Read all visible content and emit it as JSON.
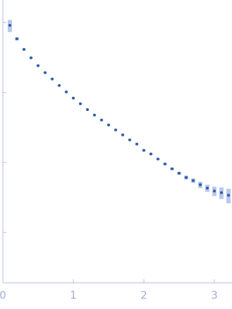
{
  "chart_data": {
    "type": "scatter",
    "x": [
      0.1,
      0.2,
      0.3,
      0.4,
      0.5,
      0.6,
      0.7,
      0.8,
      0.9,
      1.0,
      1.1,
      1.2,
      1.3,
      1.4,
      1.5,
      1.6,
      1.7,
      1.8,
      1.9,
      2.0,
      2.1,
      2.2,
      2.3,
      2.4,
      2.5,
      2.6,
      2.7,
      2.8,
      2.9,
      3.0,
      3.1,
      3.2
    ],
    "values": [
      0.91,
      0.586,
      0.413,
      0.313,
      0.242,
      0.192,
      0.156,
      0.126,
      0.102,
      0.083,
      0.069,
      0.057,
      0.0475,
      0.0404,
      0.0343,
      0.0292,
      0.0248,
      0.021,
      0.0183,
      0.0149,
      0.0132,
      0.0112,
      0.0095,
      0.0081,
      0.007,
      0.0061,
      0.0055,
      0.0048,
      0.0043,
      0.0039,
      0.0037,
      0.0034
    ],
    "errors": [
      0.18,
      0.03,
      0.008,
      0.005,
      0.003,
      0.002,
      0.0015,
      0.001,
      0.0008,
      0.0006,
      0.0005,
      0.0004,
      0.0003,
      0.0003,
      0.0002,
      0.0002,
      0.0002,
      0.0002,
      0.0002,
      0.0002,
      0.0002,
      0.0002,
      0.0003,
      0.0003,
      0.0003,
      0.0004,
      0.0004,
      0.0005,
      0.0005,
      0.0006,
      0.0007,
      0.0008
    ],
    "color": "#2f5daa",
    "error_color": "#b9c9ea",
    "xlim": [
      0,
      3.25
    ],
    "xticks": [
      0,
      1,
      2,
      3
    ],
    "ylim": [
      0.00019,
      2.1
    ],
    "yticks": [
      0.001,
      0.01,
      0.1,
      1
    ],
    "log_y": true
  }
}
